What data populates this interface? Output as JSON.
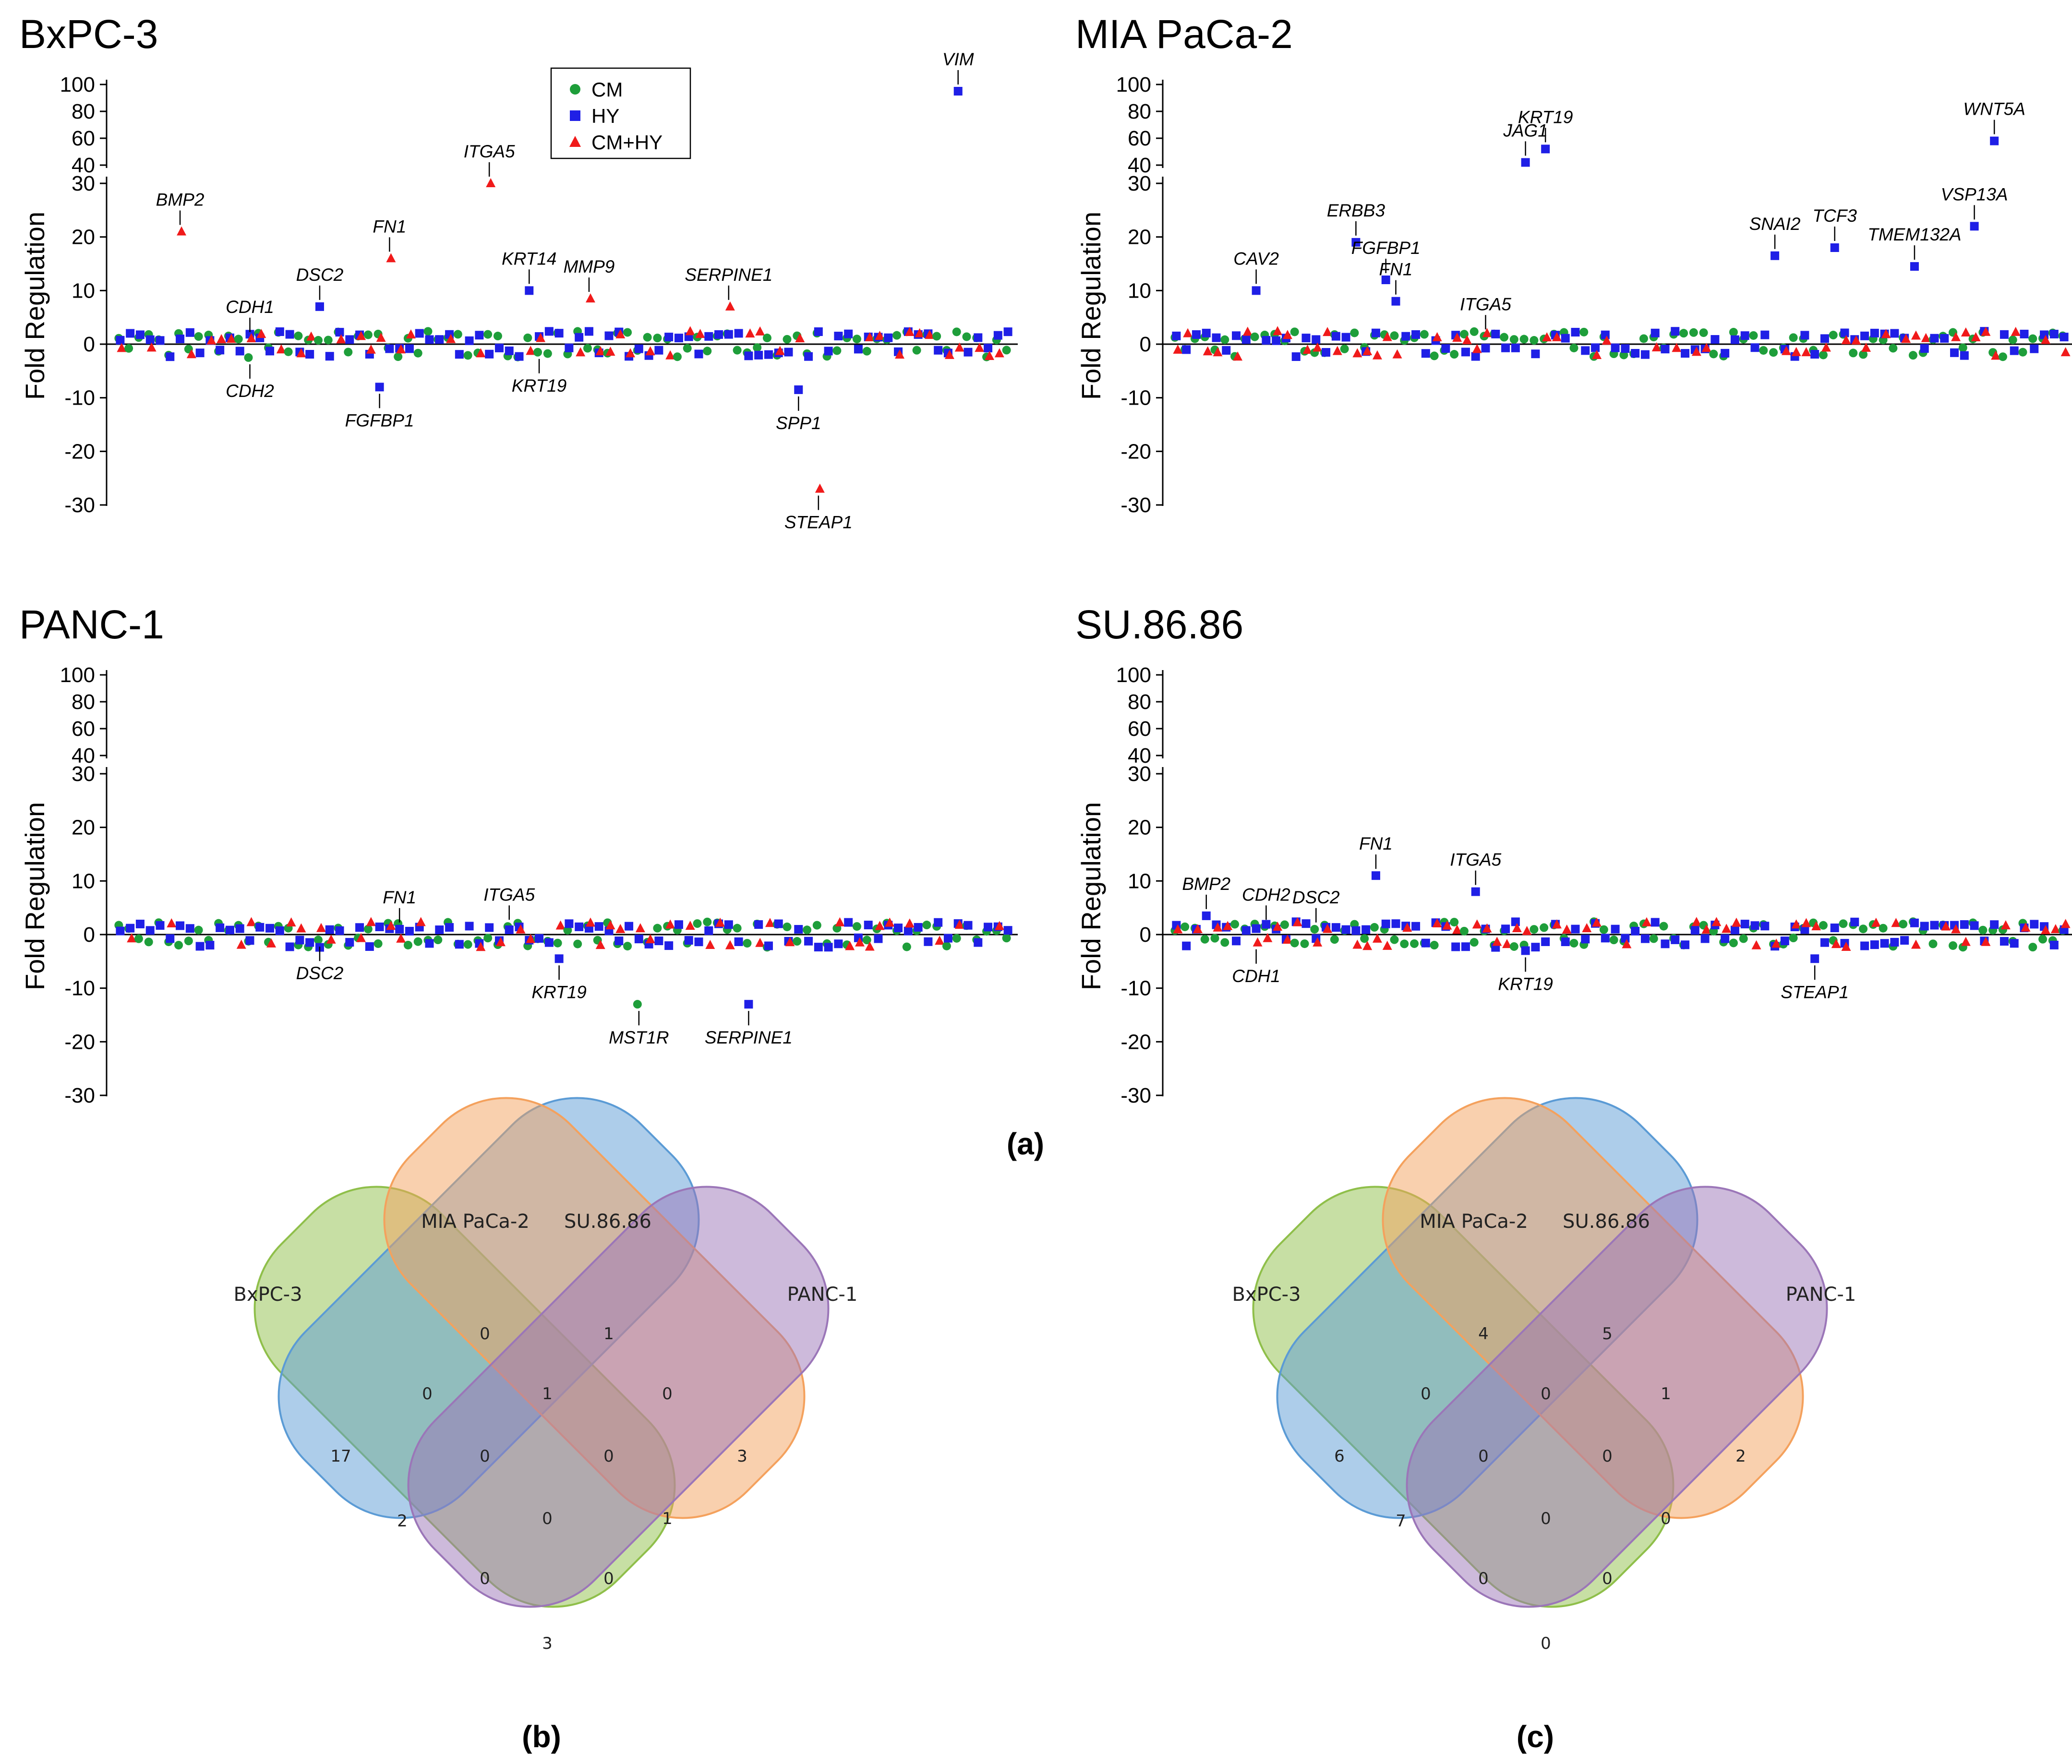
{
  "chart_data": [
    {
      "type": "scatter",
      "panel": "a",
      "title": "BxPC-3",
      "ylabel": "Fold Regulation",
      "ylim_lower": [
        -30,
        30
      ],
      "ylim_upper": [
        40,
        100
      ],
      "yticks_lower": [
        "-30",
        "-20",
        "-10",
        "0",
        "10",
        "20",
        "30"
      ],
      "yticks_upper": [
        "40",
        "60",
        "80",
        "100"
      ],
      "legend": {
        "position": "top-center",
        "entries": [
          "CM",
          "HY",
          "CM+HY"
        ]
      },
      "series_colors": {
        "CM": "#1e9e3a",
        "HY": "#1f1fe6",
        "CM+HY": "#f01a1a"
      },
      "annotations": [
        {
          "gene": "BMP2",
          "series": "CM+HY",
          "index": 6,
          "value": 21,
          "side": "above"
        },
        {
          "gene": "CDH1",
          "series": "CM",
          "index": 13,
          "value": 1,
          "side": "above"
        },
        {
          "gene": "CDH2",
          "series": "CM",
          "index": 13,
          "value": -2.5,
          "side": "below"
        },
        {
          "gene": "DSC2",
          "series": "HY",
          "index": 20,
          "value": 7,
          "side": "above"
        },
        {
          "gene": "FN1",
          "series": "CM+HY",
          "index": 27,
          "value": 16,
          "side": "above"
        },
        {
          "gene": "FGFBP1",
          "series": "HY",
          "index": 26,
          "value": -8,
          "side": "below"
        },
        {
          "gene": "ITGA5",
          "series": "CM+HY",
          "index": 37,
          "value": 30,
          "side": "above"
        },
        {
          "gene": "KRT14",
          "series": "HY",
          "index": 41,
          "value": 10,
          "side": "above"
        },
        {
          "gene": "KRT19",
          "series": "CM",
          "index": 42,
          "value": -1.5,
          "side": "below"
        },
        {
          "gene": "MMP9",
          "series": "CM+HY",
          "index": 47,
          "value": 8.5,
          "side": "above"
        },
        {
          "gene": "SERPINE1",
          "series": "CM+HY",
          "index": 61,
          "value": 7,
          "side": "above"
        },
        {
          "gene": "SPP1",
          "series": "HY",
          "index": 68,
          "value": -8.5,
          "side": "below"
        },
        {
          "gene": "STEAP1",
          "series": "CM+HY",
          "index": 70,
          "value": -27,
          "side": "below"
        },
        {
          "gene": "VIM",
          "series": "HY",
          "index": 84,
          "value": 95,
          "side": "above"
        }
      ]
    },
    {
      "type": "scatter",
      "panel": "a",
      "title": "MIA PaCa-2",
      "ylabel": "Fold Regulation",
      "ylim_lower": [
        -30,
        30
      ],
      "ylim_upper": [
        40,
        100
      ],
      "yticks_lower": [
        "-30",
        "-20",
        "-10",
        "0",
        "10",
        "20",
        "30"
      ],
      "yticks_upper": [
        "40",
        "60",
        "80",
        "100"
      ],
      "annotations": [
        {
          "gene": "CAV2",
          "series": "HY",
          "index": 8,
          "value": 10,
          "side": "above"
        },
        {
          "gene": "ERBB3",
          "series": "HY",
          "index": 18,
          "value": 19,
          "side": "above"
        },
        {
          "gene": "FGFBP1",
          "series": "HY",
          "index": 21,
          "value": 12,
          "side": "above"
        },
        {
          "gene": "FN1",
          "series": "HY",
          "index": 22,
          "value": 8,
          "side": "above"
        },
        {
          "gene": "ITGA5",
          "series": "CM",
          "index": 31,
          "value": 1.5,
          "side": "above"
        },
        {
          "gene": "JAG1",
          "series": "HY",
          "index": 35,
          "value": 42,
          "side": "above"
        },
        {
          "gene": "KRT19",
          "series": "HY",
          "index": 37,
          "value": 52,
          "side": "above"
        },
        {
          "gene": "SNAI2",
          "series": "HY",
          "index": 60,
          "value": 16.5,
          "side": "above"
        },
        {
          "gene": "TCF3",
          "series": "HY",
          "index": 66,
          "value": 18,
          "side": "above"
        },
        {
          "gene": "TMEM132A",
          "series": "HY",
          "index": 74,
          "value": 14.5,
          "side": "above"
        },
        {
          "gene": "VSP13A",
          "series": "HY",
          "index": 80,
          "value": 22,
          "side": "above"
        },
        {
          "gene": "WNT5A",
          "series": "HY",
          "index": 82,
          "value": 58,
          "side": "above"
        }
      ]
    },
    {
      "type": "scatter",
      "panel": "a",
      "title": "PANC-1",
      "ylabel": "Fold Regulation",
      "ylim_lower": [
        -30,
        30
      ],
      "ylim_upper": [
        40,
        100
      ],
      "yticks_lower": [
        "-30",
        "-20",
        "-10",
        "0",
        "10",
        "20",
        "30"
      ],
      "yticks_upper": [
        "40",
        "60",
        "80",
        "100"
      ],
      "annotations": [
        {
          "gene": "DSC2",
          "series": "CM",
          "index": 20,
          "value": -1,
          "side": "below"
        },
        {
          "gene": "FN1",
          "series": "HY",
          "index": 28,
          "value": 1,
          "side": "above"
        },
        {
          "gene": "ITGA5",
          "series": "CM",
          "index": 39,
          "value": 1.5,
          "side": "above"
        },
        {
          "gene": "KRT19",
          "series": "HY",
          "index": 44,
          "value": -4.5,
          "side": "below"
        },
        {
          "gene": "MST1R",
          "series": "CM",
          "index": 52,
          "value": -13,
          "side": "below"
        },
        {
          "gene": "SERPINE1",
          "series": "HY",
          "index": 63,
          "value": -13,
          "side": "below"
        }
      ]
    },
    {
      "type": "scatter",
      "panel": "a",
      "title": "SU.86.86",
      "ylabel": "Fold Regulation",
      "ylim_lower": [
        -30,
        30
      ],
      "ylim_upper": [
        40,
        100
      ],
      "yticks_lower": [
        "-30",
        "-20",
        "-10",
        "0",
        "10",
        "20",
        "30"
      ],
      "yticks_upper": [
        "40",
        "60",
        "80",
        "100"
      ],
      "annotations": [
        {
          "gene": "BMP2",
          "series": "HY",
          "index": 3,
          "value": 3.5,
          "side": "above"
        },
        {
          "gene": "CDH2",
          "series": "CM",
          "index": 9,
          "value": 1.5,
          "side": "above"
        },
        {
          "gene": "CDH1",
          "series": "CM+HY",
          "index": 8,
          "value": -1.5,
          "side": "below"
        },
        {
          "gene": "DSC2",
          "series": "CM",
          "index": 14,
          "value": 1,
          "side": "above"
        },
        {
          "gene": "FN1",
          "series": "HY",
          "index": 20,
          "value": 11,
          "side": "above"
        },
        {
          "gene": "ITGA5",
          "series": "HY",
          "index": 30,
          "value": 8,
          "side": "above"
        },
        {
          "gene": "KRT19",
          "series": "HY",
          "index": 35,
          "value": -3,
          "side": "below"
        },
        {
          "gene": "STEAP1",
          "series": "HY",
          "index": 64,
          "value": -4.5,
          "side": "below"
        }
      ]
    }
  ],
  "panel_a_caption": "(a)",
  "venn_b": {
    "caption": "(b)",
    "sets": [
      "BxPC-3",
      "MIA PaCa-2",
      "SU.86.86",
      "PANC-1"
    ],
    "colors": [
      "#8fbf4a",
      "#5b9bd5",
      "#f4a15d",
      "#9b76b8"
    ],
    "regions": {
      "bx_only": "17",
      "mia_only": "0",
      "su_only": "1",
      "panc_only": "3",
      "bx_mia": "0",
      "mia_su": "1",
      "su_panc": "0",
      "bx_su": "2",
      "mia_panc": "1",
      "bx_panc": "3",
      "bx_mia_su": "0",
      "mia_su_panc": "0",
      "bx_su_panc": "0",
      "bx_mia_panc": "0",
      "all": "0"
    }
  },
  "venn_c": {
    "caption": "(c)",
    "sets": [
      "BxPC-3",
      "MIA PaCa-2",
      "SU.86.86",
      "PANC-1"
    ],
    "colors": [
      "#8fbf4a",
      "#5b9bd5",
      "#f4a15d",
      "#9b76b8"
    ],
    "regions": {
      "bx_only": "6",
      "mia_only": "4",
      "su_only": "5",
      "panc_only": "2",
      "bx_mia": "0",
      "mia_su": "0",
      "su_panc": "1",
      "bx_su": "7",
      "mia_panc": "0",
      "bx_panc": "0",
      "bx_mia_su": "0",
      "mia_su_panc": "0",
      "bx_su_panc": "0",
      "bx_mia_panc": "0",
      "all": "0"
    }
  }
}
